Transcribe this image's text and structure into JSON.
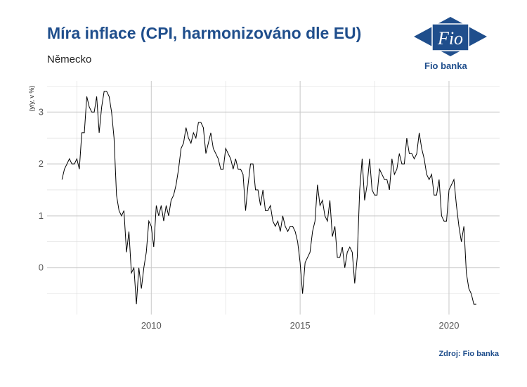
{
  "header": {
    "title": "Míra inflace (CPI, harmonizováno dle EU)",
    "subtitle": "Německo"
  },
  "footer": {
    "source": "Zdroj: Fio banka"
  },
  "logo": {
    "mark_text": "Fio",
    "name": "Fio banka",
    "color": "#1f4e8c"
  },
  "chart_data": {
    "type": "line",
    "title": "Míra inflace (CPI, harmonizováno dle EU)",
    "subtitle": "Německo",
    "xlabel": "",
    "ylabel": "(y/y, v %)",
    "x_ticks": [
      2010,
      2015,
      2020
    ],
    "y_ticks": [
      0,
      1,
      2,
      3
    ],
    "xlim": [
      2006.5,
      2021.7
    ],
    "ylim": [
      -0.9,
      3.6
    ],
    "grid": true,
    "line_color": "#000000",
    "series": [
      {
        "x": [
          2007.0,
          2007.083,
          2007.167,
          2007.25,
          2007.333,
          2007.417,
          2007.5,
          2007.583,
          2007.667,
          2007.75,
          2007.833,
          2007.917,
          2008.0,
          2008.083,
          2008.167,
          2008.25,
          2008.333,
          2008.417,
          2008.5,
          2008.583,
          2008.667,
          2008.75,
          2008.833,
          2008.917,
          2009.0,
          2009.083,
          2009.167,
          2009.25,
          2009.333,
          2009.417,
          2009.5,
          2009.583,
          2009.667,
          2009.75,
          2009.833,
          2009.917,
          2010.0,
          2010.083,
          2010.167,
          2010.25,
          2010.333,
          2010.417,
          2010.5,
          2010.583,
          2010.667,
          2010.75,
          2010.833,
          2010.917,
          2011.0,
          2011.083,
          2011.167,
          2011.25,
          2011.333,
          2011.417,
          2011.5,
          2011.583,
          2011.667,
          2011.75,
          2011.833,
          2011.917,
          2012.0,
          2012.083,
          2012.167,
          2012.25,
          2012.333,
          2012.417,
          2012.5,
          2012.583,
          2012.667,
          2012.75,
          2012.833,
          2012.917,
          2013.0,
          2013.083,
          2013.167,
          2013.25,
          2013.333,
          2013.417,
          2013.5,
          2013.583,
          2013.667,
          2013.75,
          2013.833,
          2013.917,
          2014.0,
          2014.083,
          2014.167,
          2014.25,
          2014.333,
          2014.417,
          2014.5,
          2014.583,
          2014.667,
          2014.75,
          2014.833,
          2014.917,
          2015.0,
          2015.083,
          2015.167,
          2015.25,
          2015.333,
          2015.417,
          2015.5,
          2015.583,
          2015.667,
          2015.75,
          2015.833,
          2015.917,
          2016.0,
          2016.083,
          2016.167,
          2016.25,
          2016.333,
          2016.417,
          2016.5,
          2016.583,
          2016.667,
          2016.75,
          2016.833,
          2016.917,
          2017.0,
          2017.083,
          2017.167,
          2017.25,
          2017.333,
          2017.417,
          2017.5,
          2017.583,
          2017.667,
          2017.75,
          2017.833,
          2017.917,
          2018.0,
          2018.083,
          2018.167,
          2018.25,
          2018.333,
          2018.417,
          2018.5,
          2018.583,
          2018.667,
          2018.75,
          2018.833,
          2018.917,
          2019.0,
          2019.083,
          2019.167,
          2019.25,
          2019.333,
          2019.417,
          2019.5,
          2019.583,
          2019.667,
          2019.75,
          2019.833,
          2019.917,
          2020.0,
          2020.083,
          2020.167,
          2020.25,
          2020.333,
          2020.417,
          2020.5,
          2020.583,
          2020.667,
          2020.75,
          2020.833,
          2020.917
        ],
        "y": [
          1.7,
          1.9,
          2.0,
          2.1,
          2.0,
          2.0,
          2.1,
          1.9,
          2.6,
          2.6,
          3.3,
          3.1,
          3.0,
          3.0,
          3.3,
          2.6,
          3.1,
          3.4,
          3.4,
          3.3,
          3.0,
          2.5,
          1.4,
          1.1,
          1.0,
          1.1,
          0.3,
          0.7,
          -0.1,
          0.0,
          -0.7,
          0.0,
          -0.4,
          0.0,
          0.3,
          0.9,
          0.8,
          0.4,
          1.2,
          1.0,
          1.2,
          0.9,
          1.2,
          1.0,
          1.3,
          1.4,
          1.6,
          1.9,
          2.3,
          2.4,
          2.7,
          2.5,
          2.4,
          2.6,
          2.5,
          2.8,
          2.8,
          2.7,
          2.2,
          2.4,
          2.6,
          2.3,
          2.2,
          2.1,
          1.9,
          1.9,
          2.3,
          2.2,
          2.1,
          1.9,
          2.1,
          1.9,
          1.9,
          1.8,
          1.1,
          1.6,
          2.0,
          2.0,
          1.5,
          1.5,
          1.2,
          1.5,
          1.1,
          1.1,
          1.2,
          0.9,
          0.8,
          0.9,
          0.7,
          1.0,
          0.8,
          0.7,
          0.8,
          0.8,
          0.7,
          0.5,
          0.1,
          -0.5,
          0.1,
          0.2,
          0.3,
          0.7,
          0.9,
          1.6,
          1.2,
          1.3,
          1.0,
          0.9,
          1.3,
          0.6,
          0.8,
          0.2,
          0.2,
          0.4,
          0.0,
          0.3,
          0.4,
          0.3,
          -0.3,
          0.2,
          1.5,
          2.1,
          1.3,
          1.6,
          2.1,
          1.5,
          1.4,
          1.4,
          1.9,
          1.8,
          1.7,
          1.7,
          1.5,
          2.1,
          1.8,
          1.9,
          2.2,
          2.0,
          2.0,
          2.5,
          2.2,
          2.2,
          2.1,
          2.2,
          2.6,
          2.3,
          2.1,
          1.8,
          1.7,
          1.8,
          1.4,
          1.4,
          1.7,
          1.0,
          0.9,
          0.9,
          1.5,
          1.6,
          1.7,
          1.2,
          0.8,
          0.5,
          0.8,
          -0.1,
          -0.4,
          -0.5,
          -0.7,
          -0.7
        ]
      }
    ]
  }
}
